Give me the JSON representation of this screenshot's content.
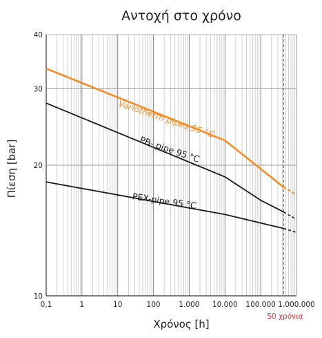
{
  "chart_data": {
    "type": "line",
    "title": "Αντοχή στο χρόνο",
    "xlabel": "Χρόνος [h]",
    "ylabel": "Πίεση [bar]",
    "xscale": "log",
    "yscale": "log",
    "xlim": [
      0.1,
      1000000
    ],
    "ylim": [
      10,
      40
    ],
    "x_tick_labels": [
      {
        "value": 0.1,
        "label": "0,1"
      },
      {
        "value": 1,
        "label": "1"
      },
      {
        "value": 10,
        "label": "10"
      },
      {
        "value": 100,
        "label": "100"
      },
      {
        "value": 1000,
        "label": "1.000"
      },
      {
        "value": 10000,
        "label": "10.000"
      },
      {
        "value": 100000,
        "label": "100.000"
      },
      {
        "value": 1000000,
        "label": "1.000.000"
      }
    ],
    "y_tick_labels": [
      {
        "value": 10,
        "label": "10"
      },
      {
        "value": 20,
        "label": "20"
      },
      {
        "value": 30,
        "label": "30"
      },
      {
        "value": 40,
        "label": "40"
      }
    ],
    "grid": true,
    "series": [
      {
        "name": "Variotherm pipes 95 °C",
        "color": "#f28c28",
        "x": [
          0.1,
          10000,
          438000
        ],
        "y": [
          33.4,
          22.8,
          17.8
        ],
        "extension": {
          "x": [
            438000,
            1000000
          ],
          "y": [
            17.8,
            17.1
          ]
        }
      },
      {
        "name": "PB- pipe 95 °C",
        "color": "#1a1a1a",
        "x": [
          0.1,
          10000,
          100000,
          438000
        ],
        "y": [
          27.8,
          18.8,
          16.6,
          15.6
        ],
        "extension": {
          "x": [
            438000,
            1000000
          ],
          "y": [
            15.6,
            15.0
          ]
        }
      },
      {
        "name": "PEX-pipe 95 °C",
        "color": "#1a1a1a",
        "x": [
          0.1,
          10000,
          438000
        ],
        "y": [
          18.3,
          15.4,
          14.3
        ],
        "extension": {
          "x": [
            438000,
            1000000
          ],
          "y": [
            14.3,
            14.0
          ]
        }
      }
    ],
    "annotations": [
      {
        "x": 438000,
        "label": "50 χρόνια",
        "color": "#e03030"
      }
    ]
  }
}
